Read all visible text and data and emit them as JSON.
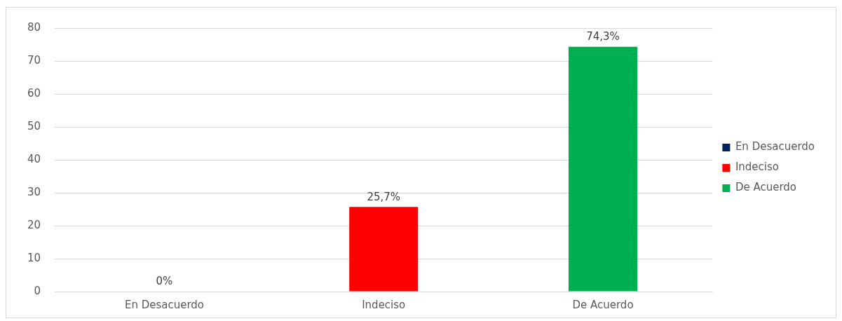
{
  "chart_data": {
    "type": "bar",
    "categories": [
      "En Desacuerdo",
      "Indeciso",
      "De Acuerdo"
    ],
    "series": [
      {
        "name": "En Desacuerdo",
        "color": "#002060",
        "values": [
          0,
          null,
          null
        ],
        "value_labels": [
          "0%",
          null,
          null
        ]
      },
      {
        "name": "Indeciso",
        "color": "#ff0000",
        "values": [
          null,
          25.7,
          null
        ],
        "value_labels": [
          null,
          "25,7%",
          null
        ]
      },
      {
        "name": "De Acuerdo",
        "color": "#00b050",
        "values": [
          null,
          null,
          74.3
        ],
        "value_labels": [
          null,
          null,
          "74,3%"
        ]
      }
    ],
    "ylim": [
      0,
      80
    ],
    "yticks": [
      0,
      10,
      20,
      30,
      40,
      50,
      60,
      70,
      80
    ],
    "grid": "y",
    "legend": "right"
  }
}
